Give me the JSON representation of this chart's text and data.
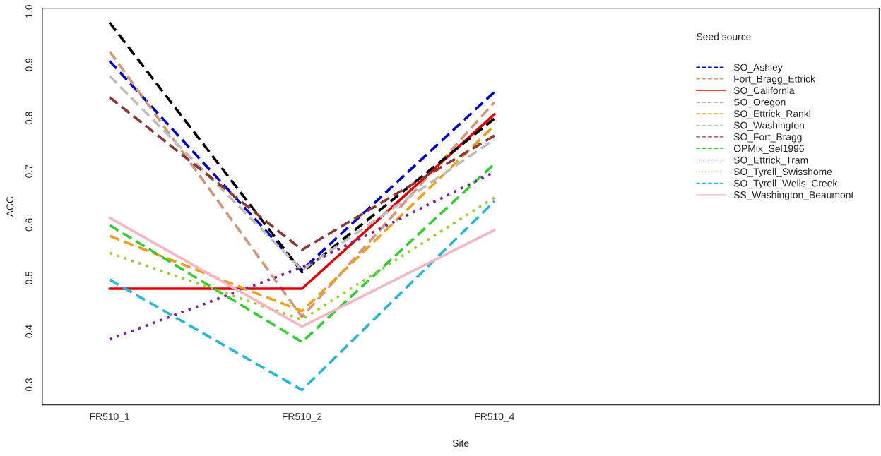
{
  "chart_data": {
    "type": "line",
    "xlabel": "Site",
    "ylabel": "ACC",
    "legend_title": "Seed source",
    "legend": "top right",
    "grid": false,
    "marker": "none",
    "categories": [
      "FR510_1",
      "FR510_2",
      "FR510_4"
    ],
    "ylim": [
      0.262,
      1.006
    ],
    "yticks": [
      0.3,
      0.4,
      0.5,
      0.6,
      0.7,
      0.8,
      0.9,
      {
        "value": 1.0,
        "label": "1.0"
      }
    ],
    "series": [
      {
        "name": "SO_Ashley",
        "color": "#0000cd",
        "line_style": "dashed",
        "values": [
          0.907,
          0.515,
          0.849
        ]
      },
      {
        "name": "Fort_Bragg_Ettrick",
        "color": "#d2957a",
        "line_style": "dashed",
        "values": [
          0.925,
          0.427,
          0.83
        ]
      },
      {
        "name": "SO_California",
        "color": "#e00000",
        "line_style": "solid",
        "values": [
          0.48,
          0.48,
          0.807
        ]
      },
      {
        "name": "SO_Oregon",
        "color": "#000000",
        "line_style": "dashed",
        "values": [
          0.979,
          0.511,
          0.799
        ]
      },
      {
        "name": "SO_Ettrick_Rankl",
        "color": "#eaa020",
        "line_style": "dashed",
        "values": [
          0.579,
          0.438,
          0.786
        ]
      },
      {
        "name": "SO_Washington",
        "color": "#bebebe",
        "line_style": "dashed",
        "values": [
          0.879,
          0.515,
          0.76
        ]
      },
      {
        "name": "SO_Fort_Bragg",
        "color": "#8b3a3a",
        "line_style": "dashed",
        "values": [
          0.839,
          0.553,
          0.767
        ]
      },
      {
        "name": "OPMix_Sel1996",
        "color": "#32cd32",
        "line_style": "dashed",
        "values": [
          0.599,
          0.38,
          0.714
        ]
      },
      {
        "name": "SO_Ettrick_Tram",
        "color": "#7b1fa2",
        "line_style": "dotted",
        "values": [
          0.385,
          0.52,
          0.699
        ]
      },
      {
        "name": "SO_Tyrell_Swisshome",
        "color": "#9acd32",
        "line_style": "dotted",
        "values": [
          0.547,
          0.422,
          0.651
        ]
      },
      {
        "name": "SO_Tyrell_Wells_Creek",
        "color": "#29b6d6",
        "line_style": "dashed",
        "values": [
          0.497,
          0.29,
          0.644
        ]
      },
      {
        "name": "SS_Washington_Beaumont",
        "color": "#f4b6c2",
        "line_style": "solid",
        "values": [
          0.613,
          0.409,
          0.59
        ]
      }
    ]
  }
}
